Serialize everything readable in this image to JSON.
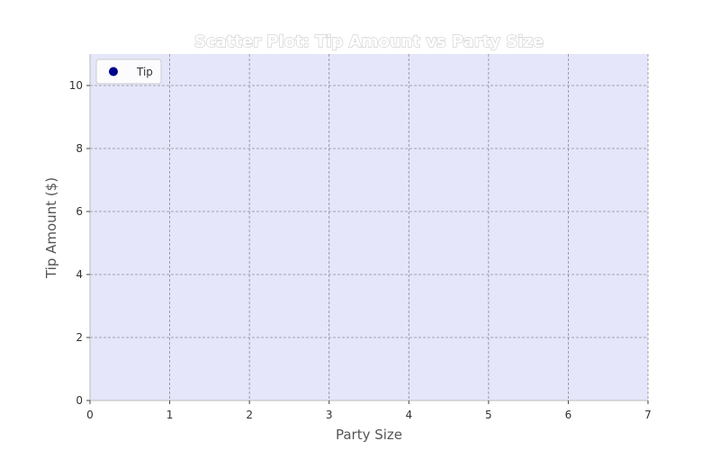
{
  "chart_data": {
    "type": "scatter",
    "title": "Scatter Plot: Tip Amount vs Party Size",
    "xlabel": "Party Size",
    "ylabel": "Tip Amount ($)",
    "xlim": [
      0,
      7
    ],
    "ylim": [
      0,
      11
    ],
    "xticks": [
      0,
      1,
      2,
      3,
      4,
      5,
      6,
      7
    ],
    "yticks": [
      0,
      2,
      4,
      6,
      8,
      10
    ],
    "grid": true,
    "legend_position": "top-left",
    "series": [
      {
        "name": "Tip",
        "color": "#00008b",
        "points": []
      }
    ],
    "colors": {
      "plot_background": "#e6e6fa",
      "grid": "#8a8a9a",
      "marker": "#00008b"
    }
  }
}
